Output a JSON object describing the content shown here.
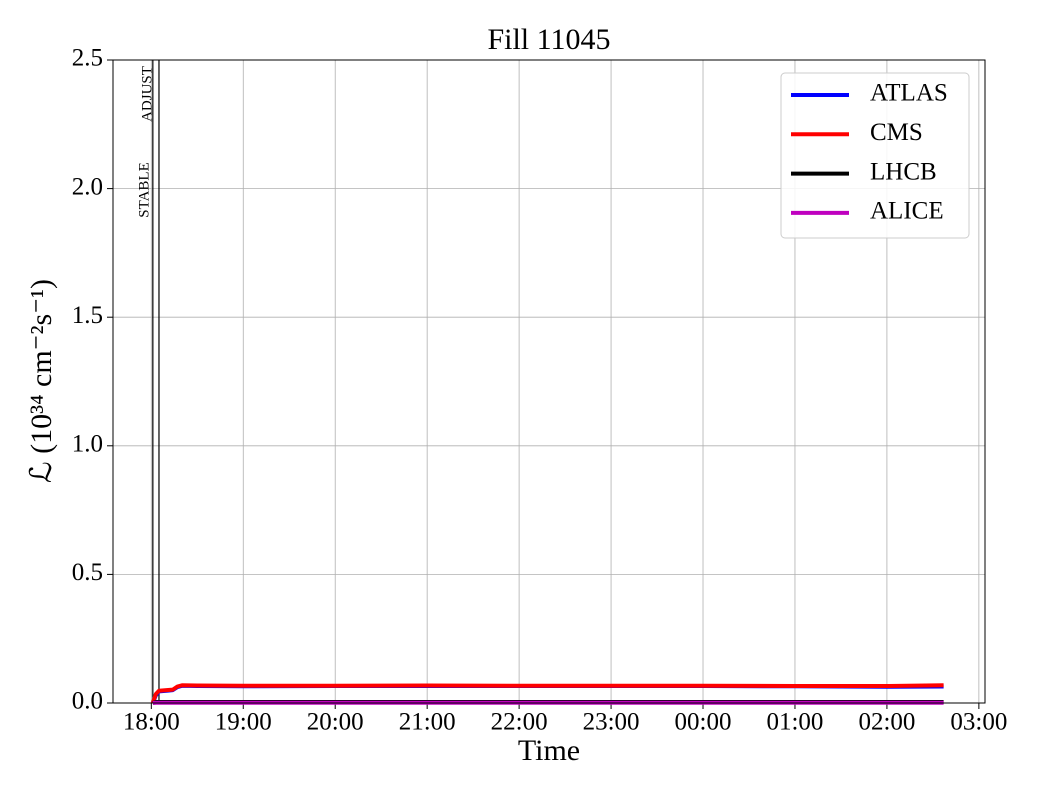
{
  "chart_data": {
    "type": "line",
    "title": "Fill 11045",
    "xlabel": "Time",
    "ylabel": "ℒ (10³⁴ cm⁻²s⁻¹)",
    "x": [
      "18:01",
      "18:03",
      "18:05",
      "18:10",
      "18:14",
      "18:17",
      "18:20",
      "18:30",
      "19:00",
      "20:00",
      "21:00",
      "22:00",
      "23:00",
      "00:00",
      "01:00",
      "02:00",
      "02:37"
    ],
    "series": [
      {
        "name": "ATLAS",
        "color": "#0000ff",
        "values": [
          0.0,
          0.03,
          0.045,
          0.048,
          0.05,
          0.062,
          0.067,
          0.066,
          0.065,
          0.066,
          0.066,
          0.066,
          0.066,
          0.066,
          0.065,
          0.063,
          0.064
        ]
      },
      {
        "name": "CMS",
        "color": "#ff0000",
        "values": [
          0.0,
          0.035,
          0.048,
          0.05,
          0.052,
          0.064,
          0.069,
          0.068,
          0.067,
          0.067,
          0.068,
          0.067,
          0.067,
          0.067,
          0.066,
          0.066,
          0.069
        ]
      },
      {
        "name": "LHCB",
        "color": "#000000",
        "values": [
          0.0,
          0.004,
          0.004,
          0.004,
          0.004,
          0.004,
          0.004,
          0.004,
          0.004,
          0.004,
          0.004,
          0.004,
          0.004,
          0.004,
          0.004,
          0.004,
          0.004
        ]
      },
      {
        "name": "ALICE",
        "color": "#bf00bf",
        "values": [
          0.0,
          0.001,
          0.001,
          0.001,
          0.001,
          0.001,
          0.001,
          0.001,
          0.001,
          0.001,
          0.001,
          0.001,
          0.001,
          0.001,
          0.001,
          0.001,
          0.001
        ]
      }
    ],
    "annotations": [
      {
        "label": "ADJUST",
        "x": "18:05"
      },
      {
        "label": "STABLE",
        "x": "18:01"
      }
    ],
    "xlim": [
      "17:35",
      "03:04"
    ],
    "xticks": [
      "18:00",
      "19:00",
      "20:00",
      "21:00",
      "22:00",
      "23:00",
      "00:00",
      "01:00",
      "02:00",
      "03:00"
    ],
    "ylim": [
      0,
      2.5
    ],
    "yticks": [
      {
        "value": 0,
        "label": "0.0"
      },
      0.5,
      {
        "value": 1,
        "label": "1.0"
      },
      1.5,
      {
        "value": 2,
        "label": "2.0"
      },
      2.5
    ],
    "grid": true,
    "legend": "upper right"
  }
}
